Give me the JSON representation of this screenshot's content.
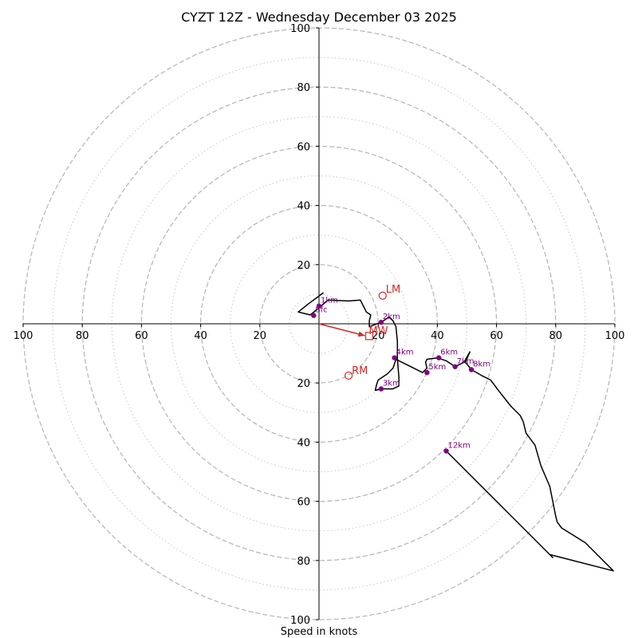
{
  "chart_data": {
    "type": "hodograph",
    "title": "CYZT 12Z - Wednesday December 03 2025",
    "xlabel": "Speed in knots",
    "max_speed": 100,
    "ring_major": [
      20,
      40,
      60,
      80,
      100
    ],
    "ring_minor": [
      10,
      30,
      50,
      70,
      90
    ],
    "x_tick_labels": [
      "100",
      "80",
      "60",
      "40",
      "20",
      "20",
      "40",
      "60",
      "80",
      "100"
    ],
    "x_tick_values": [
      -100,
      -80,
      -60,
      -40,
      -20,
      20,
      40,
      60,
      80,
      100
    ],
    "y_tick_labels": [
      "20",
      "40",
      "60",
      "80",
      "100"
    ],
    "y_tick_values_up": [
      20,
      40,
      60,
      80,
      100
    ],
    "y_tick_labels_down": [
      "20",
      "40",
      "60",
      "80",
      "100"
    ],
    "y_tick_values_down": [
      -20,
      -40,
      -60,
      -80,
      -100
    ],
    "trace": {
      "color": "#000000",
      "points": [
        [
          1.5,
          10.5
        ],
        [
          -3.5,
          6.8
        ],
        [
          -7,
          4
        ],
        [
          -3,
          3
        ],
        [
          0,
          5.4
        ],
        [
          3,
          8
        ],
        [
          10,
          7.7
        ],
        [
          14,
          8
        ],
        [
          15,
          6
        ],
        [
          16,
          4
        ],
        [
          17.5,
          3
        ],
        [
          17,
          1
        ],
        [
          17,
          -1
        ],
        [
          21,
          0.5
        ],
        [
          23.7,
          2.3
        ],
        [
          25,
          1
        ],
        [
          26,
          -1
        ],
        [
          26.5,
          -6
        ],
        [
          26.5,
          -12
        ],
        [
          27,
          -18
        ],
        [
          27,
          -21
        ],
        [
          25,
          -22
        ],
        [
          21,
          -22
        ],
        [
          19,
          -22.5
        ],
        [
          19.5,
          -20.5
        ],
        [
          20,
          -19
        ],
        [
          23,
          -17
        ],
        [
          25,
          -15
        ],
        [
          26,
          -12
        ],
        [
          32,
          -15
        ],
        [
          35,
          -16.5
        ],
        [
          36.5,
          -15
        ],
        [
          36,
          -13
        ],
        [
          36.5,
          -12
        ],
        [
          40,
          -11.5
        ],
        [
          43,
          -12.5
        ],
        [
          46,
          -14.5
        ],
        [
          49,
          -13
        ],
        [
          51,
          -9.5
        ],
        [
          49.5,
          -13
        ],
        [
          51.5,
          -15.5
        ],
        [
          55,
          -17.5
        ],
        [
          58,
          -19
        ],
        [
          61,
          -23
        ],
        [
          65,
          -28
        ],
        [
          68,
          -31
        ],
        [
          69,
          -33
        ],
        [
          70,
          -37
        ],
        [
          73,
          -41
        ],
        [
          75,
          -48
        ],
        [
          78,
          -55
        ],
        [
          80,
          -65
        ],
        [
          80.5,
          -67
        ],
        [
          82,
          -69
        ],
        [
          90,
          -74
        ],
        [
          99.5,
          -83.5
        ],
        [
          78,
          -78
        ],
        [
          79,
          -79
        ],
        [
          43,
          -43
        ]
      ]
    },
    "height_markers": {
      "color": "#800080",
      "points": [
        {
          "label": "Sfc",
          "u": -1.8,
          "v": 2.8
        },
        {
          "label": "1km",
          "u": 0,
          "v": 6
        },
        {
          "label": "2km",
          "u": 21,
          "v": 0.5
        },
        {
          "label": "3km",
          "u": 21,
          "v": -22
        },
        {
          "label": "4km",
          "u": 25.5,
          "v": -11.5
        },
        {
          "label": "5km",
          "u": 36.5,
          "v": -16.5
        },
        {
          "label": "6km",
          "u": 40.5,
          "v": -11.5
        },
        {
          "label": "7km",
          "u": 46,
          "v": -14.5
        },
        {
          "label": "8km",
          "u": 51.5,
          "v": -15.5
        },
        {
          "label": "12km",
          "u": 43,
          "v": -43
        }
      ]
    },
    "storm_motion": {
      "color": "#d62728",
      "mean_wind": {
        "label": "MW",
        "u": 15.5,
        "v": -4
      },
      "left_mover": {
        "label": "LM",
        "u": 21.5,
        "v": 9.5
      },
      "right_mover": {
        "label": "RM",
        "u": 10,
        "v": -17.5
      }
    }
  }
}
